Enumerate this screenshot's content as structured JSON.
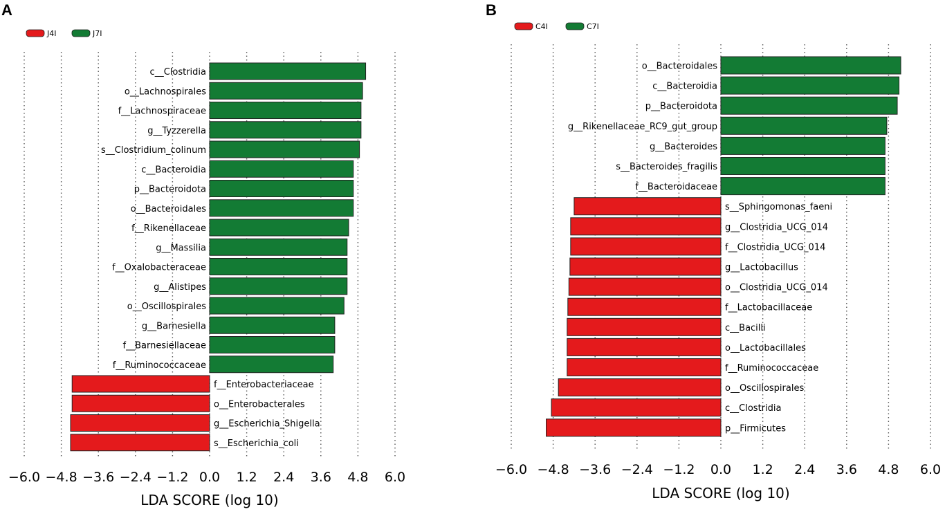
{
  "chart_data": [
    {
      "type": "bar",
      "panel": "A",
      "orientation": "horizontal",
      "legend": [
        {
          "name": "J4I",
          "color": "#e41a1c"
        },
        {
          "name": "J7I",
          "color": "#137b34"
        }
      ],
      "categories": [
        "c__Clostridia",
        "o__Lachnospirales",
        "f__Lachnospiraceae",
        "g__Tyzzerella",
        "s__Clostridium_colinum",
        "c__Bacteroidia",
        "p__Bacteroidota",
        "o__Bacteroidales",
        "f__Rikenellaceae",
        "g__Massilia",
        "f__Oxalobacteraceae",
        "g__Alistipes",
        "o__Oscillospirales",
        "g__Barnesiella",
        "f__Barnesiellaceae",
        "f__Ruminococcaceae",
        "f__Enterobacteriaceae",
        "o__Enterobacterales",
        "g__Escherichia_Shigella",
        "s__Escherichia_coli"
      ],
      "values": [
        5.05,
        4.95,
        4.9,
        4.9,
        4.85,
        4.65,
        4.65,
        4.65,
        4.5,
        4.45,
        4.45,
        4.45,
        4.35,
        4.05,
        4.05,
        4.0,
        -4.45,
        -4.45,
        -4.5,
        -4.5
      ],
      "groups": [
        "J7I",
        "J7I",
        "J7I",
        "J7I",
        "J7I",
        "J7I",
        "J7I",
        "J7I",
        "J7I",
        "J7I",
        "J7I",
        "J7I",
        "J7I",
        "J7I",
        "J7I",
        "J7I",
        "J4I",
        "J4I",
        "J4I",
        "J4I"
      ],
      "xticks": [
        "−6.0",
        "−4.8",
        "−3.6",
        "−2.4",
        "−1.2",
        "0.0",
        "1.2",
        "2.4",
        "3.6",
        "4.8",
        "6.0"
      ],
      "xlim": [
        -6.0,
        6.0
      ],
      "xlabel": "LDA SCORE (log 10)",
      "grid": true
    },
    {
      "type": "bar",
      "panel": "B",
      "orientation": "horizontal",
      "legend": [
        {
          "name": "C4I",
          "color": "#e41a1c"
        },
        {
          "name": "C7I",
          "color": "#137b34"
        }
      ],
      "categories": [
        "o__Bacteroidales",
        "c__Bacteroidia",
        "p__Bacteroidota",
        "g__Rikenellaceae_RC9_gut_group",
        "g__Bacteroides",
        "s__Bacteroides_fragilis",
        "f__Bacteroidaceae",
        "s__Sphingomonas_faeni",
        "g__Clostridia_UCG_014",
        "f__Clostridia_UCG_014",
        "g__Lactobacillus",
        "o__Clostridia_UCG_014",
        "f__Lactobacillaceae",
        "c__Bacilli",
        "o__Lactobacillales",
        "f__Ruminococcaceae",
        "o__Oscillospirales",
        "c__Clostridia",
        "p__Firmicutes"
      ],
      "values": [
        5.15,
        5.1,
        5.05,
        4.75,
        4.7,
        4.7,
        4.7,
        -4.2,
        -4.3,
        -4.3,
        -4.32,
        -4.35,
        -4.38,
        -4.4,
        -4.4,
        -4.4,
        -4.65,
        -4.85,
        -5.0
      ],
      "groups": [
        "C7I",
        "C7I",
        "C7I",
        "C7I",
        "C7I",
        "C7I",
        "C7I",
        "C4I",
        "C4I",
        "C4I",
        "C4I",
        "C4I",
        "C4I",
        "C4I",
        "C4I",
        "C4I",
        "C4I",
        "C4I",
        "C4I"
      ],
      "xticks": [
        "−6.0",
        "−4.8",
        "−3.6",
        "−2.4",
        "−1.2",
        "0.0",
        "1.2",
        "2.4",
        "3.6",
        "4.8",
        "6.0"
      ],
      "xlim": [
        -6.0,
        6.0
      ],
      "xlabel": "LDA SCORE (log 10)",
      "grid": true
    }
  ]
}
